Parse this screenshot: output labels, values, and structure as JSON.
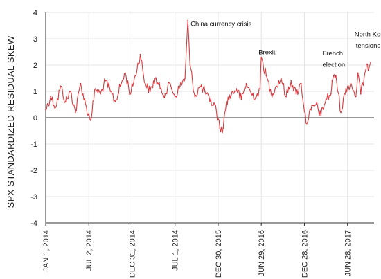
{
  "chart_data": {
    "type": "line",
    "ylabel": "SPX STANDARDIZED RESIDUAL SKEW",
    "ylim": [
      -4,
      4
    ],
    "yticks": [
      4,
      3,
      2,
      1,
      0,
      -1,
      -2,
      -3,
      -4
    ],
    "xticks": [
      {
        "label": "JAN 1, 2014",
        "date": "2014-01-01"
      },
      {
        "label": "JUL 2, 2014",
        "date": "2014-07-02"
      },
      {
        "label": "DEC 31, 2014",
        "date": "2014-12-31"
      },
      {
        "label": "JUL 1, 2014",
        "date": "2015-07-01"
      },
      {
        "label": "DEC 30, 2015",
        "date": "2015-12-30"
      },
      {
        "label": "JUN 29, 2016",
        "date": "2016-06-29"
      },
      {
        "label": "DEC 28, 2016",
        "date": "2016-12-28"
      },
      {
        "label": "JUN 28, 2017",
        "date": "2017-06-28"
      }
    ],
    "grid": {
      "x": true,
      "y": true
    },
    "zero_line": true,
    "colors": {
      "line": "#d63a3f",
      "grid": "#e4e4e4",
      "axis": "#333333"
    },
    "series": [
      {
        "x": [
          "2014-01-01",
          "2014-01-22",
          "2014-02-12",
          "2014-03-05",
          "2014-03-26",
          "2014-04-16",
          "2014-05-07",
          "2014-05-28",
          "2014-06-18",
          "2014-07-09",
          "2014-07-30",
          "2014-08-20",
          "2014-09-10",
          "2014-10-01",
          "2014-10-22",
          "2014-11-12",
          "2014-12-03",
          "2014-12-24",
          "2015-01-14",
          "2015-02-04",
          "2015-02-25",
          "2015-03-18",
          "2015-04-08",
          "2015-04-29",
          "2015-05-20",
          "2015-06-10",
          "2015-07-01",
          "2015-07-22",
          "2015-08-12",
          "2015-08-24",
          "2015-09-02",
          "2015-09-23",
          "2015-10-14",
          "2015-11-04",
          "2015-11-25",
          "2015-12-16",
          "2016-01-06",
          "2016-01-20",
          "2016-02-03",
          "2016-02-24",
          "2016-03-16",
          "2016-04-06",
          "2016-04-27",
          "2016-05-18",
          "2016-06-08",
          "2016-06-24",
          "2016-06-29",
          "2016-07-20",
          "2016-08-10",
          "2016-08-31",
          "2016-09-21",
          "2016-10-12",
          "2016-11-02",
          "2016-11-23",
          "2016-12-14",
          "2017-01-04",
          "2017-01-25",
          "2017-02-15",
          "2017-03-08",
          "2017-03-29",
          "2017-04-19",
          "2017-04-24",
          "2017-05-10",
          "2017-05-31",
          "2017-06-21",
          "2017-07-12",
          "2017-08-02",
          "2017-08-11",
          "2017-08-23",
          "2017-09-13",
          "2017-10-04"
        ],
        "y": [
          0.3,
          0.8,
          0.4,
          1.2,
          0.6,
          1.0,
          0.2,
          1.3,
          0.5,
          -0.1,
          1.1,
          0.9,
          1.4,
          1.0,
          0.6,
          1.2,
          1.7,
          0.9,
          1.6,
          2.4,
          1.3,
          1.0,
          1.5,
          1.1,
          0.9,
          1.3,
          0.8,
          1.2,
          1.5,
          3.7,
          2.0,
          0.8,
          1.2,
          1.0,
          0.6,
          0.5,
          -0.4,
          -0.4,
          0.6,
          0.9,
          1.1,
          0.7,
          1.3,
          0.9,
          0.8,
          1.1,
          2.3,
          1.6,
          0.9,
          1.2,
          1.5,
          0.8,
          1.4,
          0.9,
          1.3,
          -0.2,
          0.3,
          0.5,
          0.1,
          0.7,
          0.9,
          1.4,
          1.6,
          0.2,
          1.1,
          1.3,
          0.8,
          1.7,
          0.9,
          1.8,
          2.1
        ]
      }
    ],
    "annotations": [
      {
        "text": "China currency crisis",
        "date": "2015-08-24",
        "value": 3.7
      },
      {
        "text": "Brexit",
        "date": "2016-06-29",
        "value": 2.3
      },
      {
        "text": "French",
        "date": "2017-04-24",
        "value": 2.0
      },
      {
        "text": "election",
        "date": "2017-04-24",
        "value": 1.7
      },
      {
        "text": "North Korea",
        "date": "2017-08-11",
        "value": 2.7
      },
      {
        "text": "tensions",
        "date": "2017-08-11",
        "value": 2.4
      }
    ]
  }
}
